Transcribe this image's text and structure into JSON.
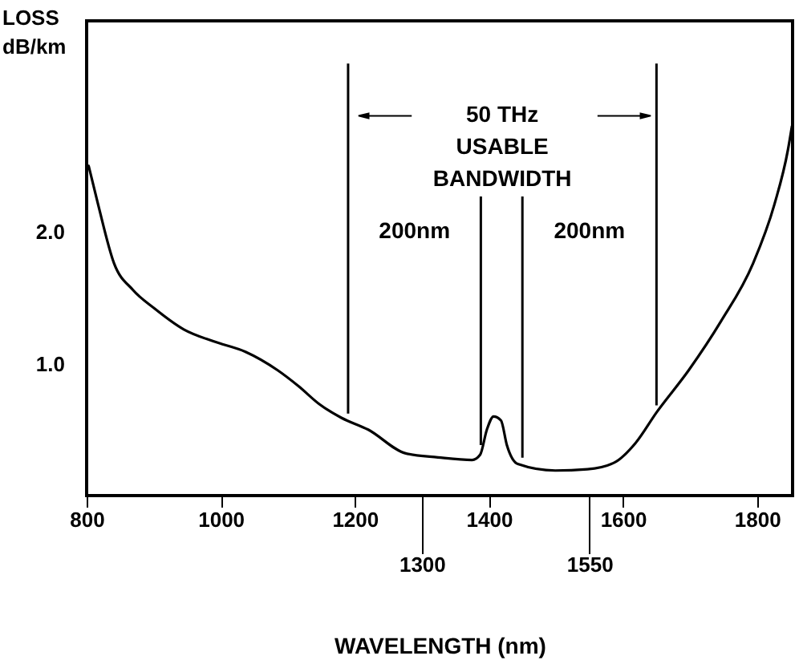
{
  "chart_data": {
    "type": "line",
    "xlabel": "WAVELENGTH (nm)",
    "ylabel": "LOSS\ndB/km",
    "x": [
      803,
      817,
      841,
      869,
      901,
      945,
      989,
      1037,
      1085,
      1116,
      1148,
      1180,
      1220,
      1276,
      1324,
      1375,
      1387,
      1397,
      1407,
      1418,
      1427,
      1443,
      1499,
      1547,
      1587,
      1619,
      1650,
      1698,
      1746,
      1794,
      1826,
      1846,
      1852
    ],
    "series": [
      {
        "color": "#000000",
        "values": [
          2.5,
          2.21,
          1.76,
          1.56,
          1.42,
          1.26,
          1.17,
          1.09,
          0.95,
          0.83,
          0.69,
          0.59,
          0.5,
          0.32,
          0.29,
          0.27,
          0.31,
          0.5,
          0.6,
          0.57,
          0.38,
          0.24,
          0.19,
          0.2,
          0.25,
          0.4,
          0.63,
          0.95,
          1.32,
          1.76,
          2.21,
          2.62,
          2.8
        ]
      }
    ],
    "xlim": [
      800,
      1853
    ],
    "ylim": [
      0,
      3.6
    ],
    "xticks": [
      800,
      1000,
      1200,
      1400,
      1600,
      1800
    ],
    "x2lim": [
      800,
      1853
    ],
    "x2ticks": [
      1300,
      1550
    ],
    "yticks": [
      {
        "value": 1,
        "label": "1.0"
      },
      {
        "value": 2,
        "label": "2.0"
      }
    ],
    "ref_lines": [
      {
        "axis": "x",
        "value": 1190
      },
      {
        "axis": "x",
        "value": 1388
      },
      {
        "axis": "x",
        "value": 1450
      },
      {
        "axis": "x",
        "value": 1650
      }
    ],
    "annotations": [
      "50 THz\nUSABLE\nBANDWIDTH",
      "200nm",
      "200nm"
    ],
    "grid": false,
    "marker": "none",
    "line_style": "solid"
  }
}
